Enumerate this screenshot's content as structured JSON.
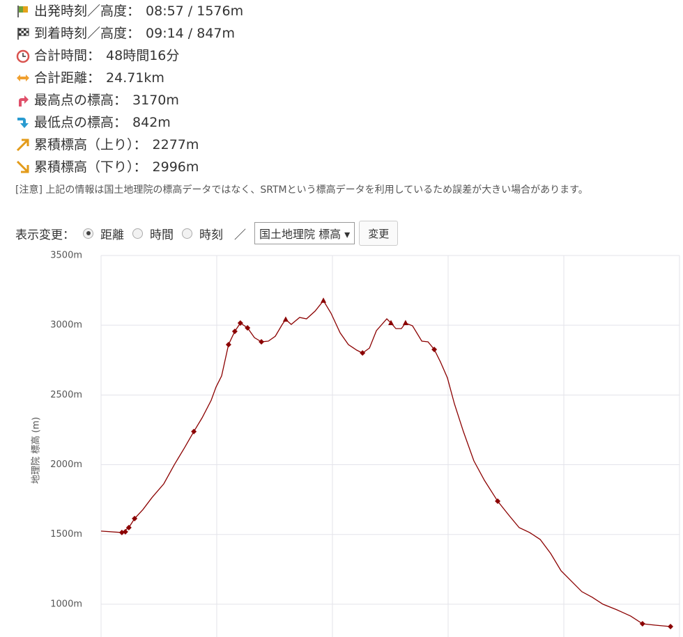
{
  "info": [
    {
      "label": "出発時刻／高度：",
      "value": "08:57 / 1576m"
    },
    {
      "label": "到着時刻／高度：",
      "value": "09:14 / 847m"
    },
    {
      "label": "合計時間：",
      "value": "48時間16分"
    },
    {
      "label": "合計距離：",
      "value": "24.71km"
    },
    {
      "label": "最高点の標高：",
      "value": "3170m"
    },
    {
      "label": "最低点の標高：",
      "value": "842m"
    },
    {
      "label": "累積標高（上り）：",
      "value": "2277m"
    },
    {
      "label": "累積標高（下り）：",
      "value": "2996m"
    }
  ],
  "note": "[注意] 上記の情報は国土地理院の標高データではなく、SRTMという標高データを利用しているため誤差が大きい場合があります。",
  "controls": {
    "label": "表示変更：",
    "options": [
      "距離",
      "時間",
      "時刻"
    ],
    "separator": "／",
    "select": "国土地理院 標高 ▾",
    "button": "変更"
  },
  "chart_data": {
    "type": "line",
    "y_label": "地理院 標高 (m)",
    "xlim": [
      0,
      25
    ],
    "xticks": [
      0,
      5,
      10,
      15,
      20,
      25
    ],
    "ylim": [
      765,
      3500
    ],
    "yticks": [
      {
        "value": 1000,
        "label": "1000m"
      },
      {
        "value": 1500,
        "label": "1500m"
      },
      {
        "value": 2000,
        "label": "2000m"
      },
      {
        "value": 2500,
        "label": "2500m"
      },
      {
        "value": 3000,
        "label": "3000m"
      },
      {
        "value": 3500,
        "label": "3500m"
      }
    ],
    "grid": true,
    "series": [
      {
        "color": "#8b0000",
        "x": [
          0,
          0.9,
          1.2,
          1.45,
          1.81,
          2.2,
          2.71,
          3.16,
          3.61,
          4.01,
          4.37,
          4.76,
          4.97,
          5.21,
          5.51,
          5.78,
          6.02,
          6.33,
          6.63,
          6.93,
          7.23,
          7.53,
          7.83,
          7.98,
          8.22,
          8.58,
          8.88,
          9.25,
          9.61,
          9.94,
          10.33,
          10.69,
          11.05,
          11.3,
          11.6,
          11.9,
          12.35,
          12.53,
          12.74,
          12.98,
          13.16,
          13.46,
          13.86,
          14.13,
          14.4,
          14.67,
          14.97,
          15.27,
          15.66,
          16.11,
          16.57,
          17.14,
          17.62,
          18.07,
          18.52,
          18.98,
          19.43,
          19.88,
          20.33,
          20.78,
          21.23,
          21.69,
          22.29,
          22.89,
          23.4,
          23.95,
          24.61
        ],
        "values": [
          1524,
          1514,
          1549,
          1614,
          1679,
          1764,
          1863,
          1998,
          2123,
          2238,
          2337,
          2462,
          2557,
          2637,
          2861,
          2956,
          3016,
          2981,
          2911,
          2881,
          2886,
          2921,
          3006,
          3041,
          3006,
          3056,
          3046,
          3101,
          3176,
          3086,
          2946,
          2861,
          2821,
          2801,
          2836,
          2961,
          3046,
          3016,
          2976,
          2976,
          3016,
          2996,
          2886,
          2881,
          2826,
          2737,
          2622,
          2437,
          2238,
          2028,
          1888,
          1739,
          1639,
          1549,
          1514,
          1464,
          1364,
          1240,
          1165,
          1090,
          1050,
          1000,
          960,
          915,
          860,
          850,
          840
        ]
      }
    ],
    "markers": [
      {
        "x": 0.9,
        "y": 1514,
        "shape": "diamond"
      },
      {
        "x": 1.05,
        "y": 1519,
        "shape": "diamond"
      },
      {
        "x": 1.2,
        "y": 1549,
        "shape": "diamond"
      },
      {
        "x": 1.45,
        "y": 1614,
        "shape": "diamond"
      },
      {
        "x": 4.01,
        "y": 2238,
        "shape": "diamond"
      },
      {
        "x": 5.51,
        "y": 2861,
        "shape": "diamond"
      },
      {
        "x": 5.78,
        "y": 2956,
        "shape": "diamond"
      },
      {
        "x": 6.02,
        "y": 3016,
        "shape": "diamond"
      },
      {
        "x": 6.33,
        "y": 2981,
        "shape": "diamond"
      },
      {
        "x": 6.93,
        "y": 2881,
        "shape": "diamond"
      },
      {
        "x": 7.98,
        "y": 3041,
        "shape": "triangle"
      },
      {
        "x": 9.61,
        "y": 3176,
        "shape": "triangle"
      },
      {
        "x": 11.3,
        "y": 2801,
        "shape": "diamond"
      },
      {
        "x": 12.53,
        "y": 3016,
        "shape": "triangle"
      },
      {
        "x": 13.16,
        "y": 3016,
        "shape": "triangle"
      },
      {
        "x": 14.4,
        "y": 2826,
        "shape": "diamond"
      },
      {
        "x": 17.14,
        "y": 1739,
        "shape": "diamond"
      },
      {
        "x": 23.4,
        "y": 860,
        "shape": "diamond"
      },
      {
        "x": 24.61,
        "y": 840,
        "shape": "diamond"
      }
    ]
  }
}
